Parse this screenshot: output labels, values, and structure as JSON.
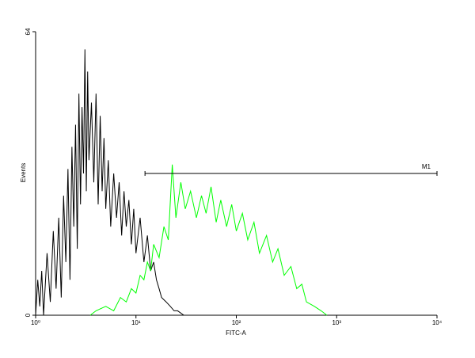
{
  "chart_data": {
    "type": "histogram",
    "xlabel": "FITC-A",
    "ylabel": "Events",
    "xscale": "log",
    "xlim": [
      1,
      10000
    ],
    "xticks": [
      {
        "value": 1,
        "label": "10⁰"
      },
      {
        "value": 10,
        "label": "10¹"
      },
      {
        "value": 100,
        "label": "10²"
      },
      {
        "value": 1000,
        "label": "10³"
      },
      {
        "value": 10000,
        "label": "10⁴"
      }
    ],
    "ylim": [
      0,
      64
    ],
    "yticks": [
      0,
      64
    ],
    "series": [
      {
        "color": "#000000",
        "x": [
          1.0,
          1.05,
          1.1,
          1.15,
          1.2,
          1.3,
          1.4,
          1.5,
          1.6,
          1.7,
          1.8,
          1.9,
          2.0,
          2.1,
          2.2,
          2.3,
          2.4,
          2.5,
          2.6,
          2.7,
          2.8,
          2.9,
          3.0,
          3.1,
          3.2,
          3.3,
          3.4,
          3.6,
          3.8,
          4.0,
          4.2,
          4.4,
          4.6,
          4.8,
          5.0,
          5.3,
          5.6,
          6.0,
          6.4,
          6.8,
          7.2,
          7.6,
          8.0,
          8.5,
          9,
          9.5,
          10,
          11,
          12,
          13,
          14,
          15,
          16,
          17,
          18,
          20,
          22,
          24,
          26,
          30
        ],
        "values": [
          0,
          8,
          2,
          10,
          0,
          14,
          3,
          19,
          6,
          22,
          4,
          27,
          12,
          33,
          8,
          38,
          20,
          43,
          15,
          50,
          25,
          47,
          32,
          60,
          28,
          55,
          35,
          48,
          30,
          50,
          25,
          45,
          28,
          40,
          24,
          35,
          20,
          32,
          22,
          30,
          18,
          28,
          20,
          26,
          16,
          24,
          14,
          22,
          12,
          18,
          10,
          12,
          8,
          6,
          4,
          3,
          2,
          1,
          1,
          0
        ]
      },
      {
        "color": "#00ff00",
        "x": [
          3.5,
          4,
          5,
          6,
          7,
          8,
          9,
          10,
          11,
          12,
          13,
          14,
          15,
          17,
          19,
          21,
          23,
          25,
          28,
          31,
          35,
          40,
          45,
          50,
          56,
          63,
          70,
          80,
          90,
          100,
          115,
          130,
          150,
          170,
          200,
          230,
          260,
          300,
          350,
          400,
          450,
          500,
          600,
          700,
          800
        ],
        "values": [
          0,
          1,
          2,
          1,
          4,
          3,
          6,
          5,
          9,
          8,
          12,
          10,
          16,
          13,
          20,
          17,
          34,
          22,
          30,
          24,
          28,
          22,
          27,
          23,
          29,
          21,
          26,
          20,
          25,
          19,
          23,
          17,
          21,
          14,
          18,
          12,
          15,
          9,
          11,
          6,
          7,
          3,
          2,
          1,
          0
        ]
      }
    ],
    "marker": {
      "label": "M1",
      "range": [
        12.3,
        10000
      ],
      "y": 32
    }
  }
}
